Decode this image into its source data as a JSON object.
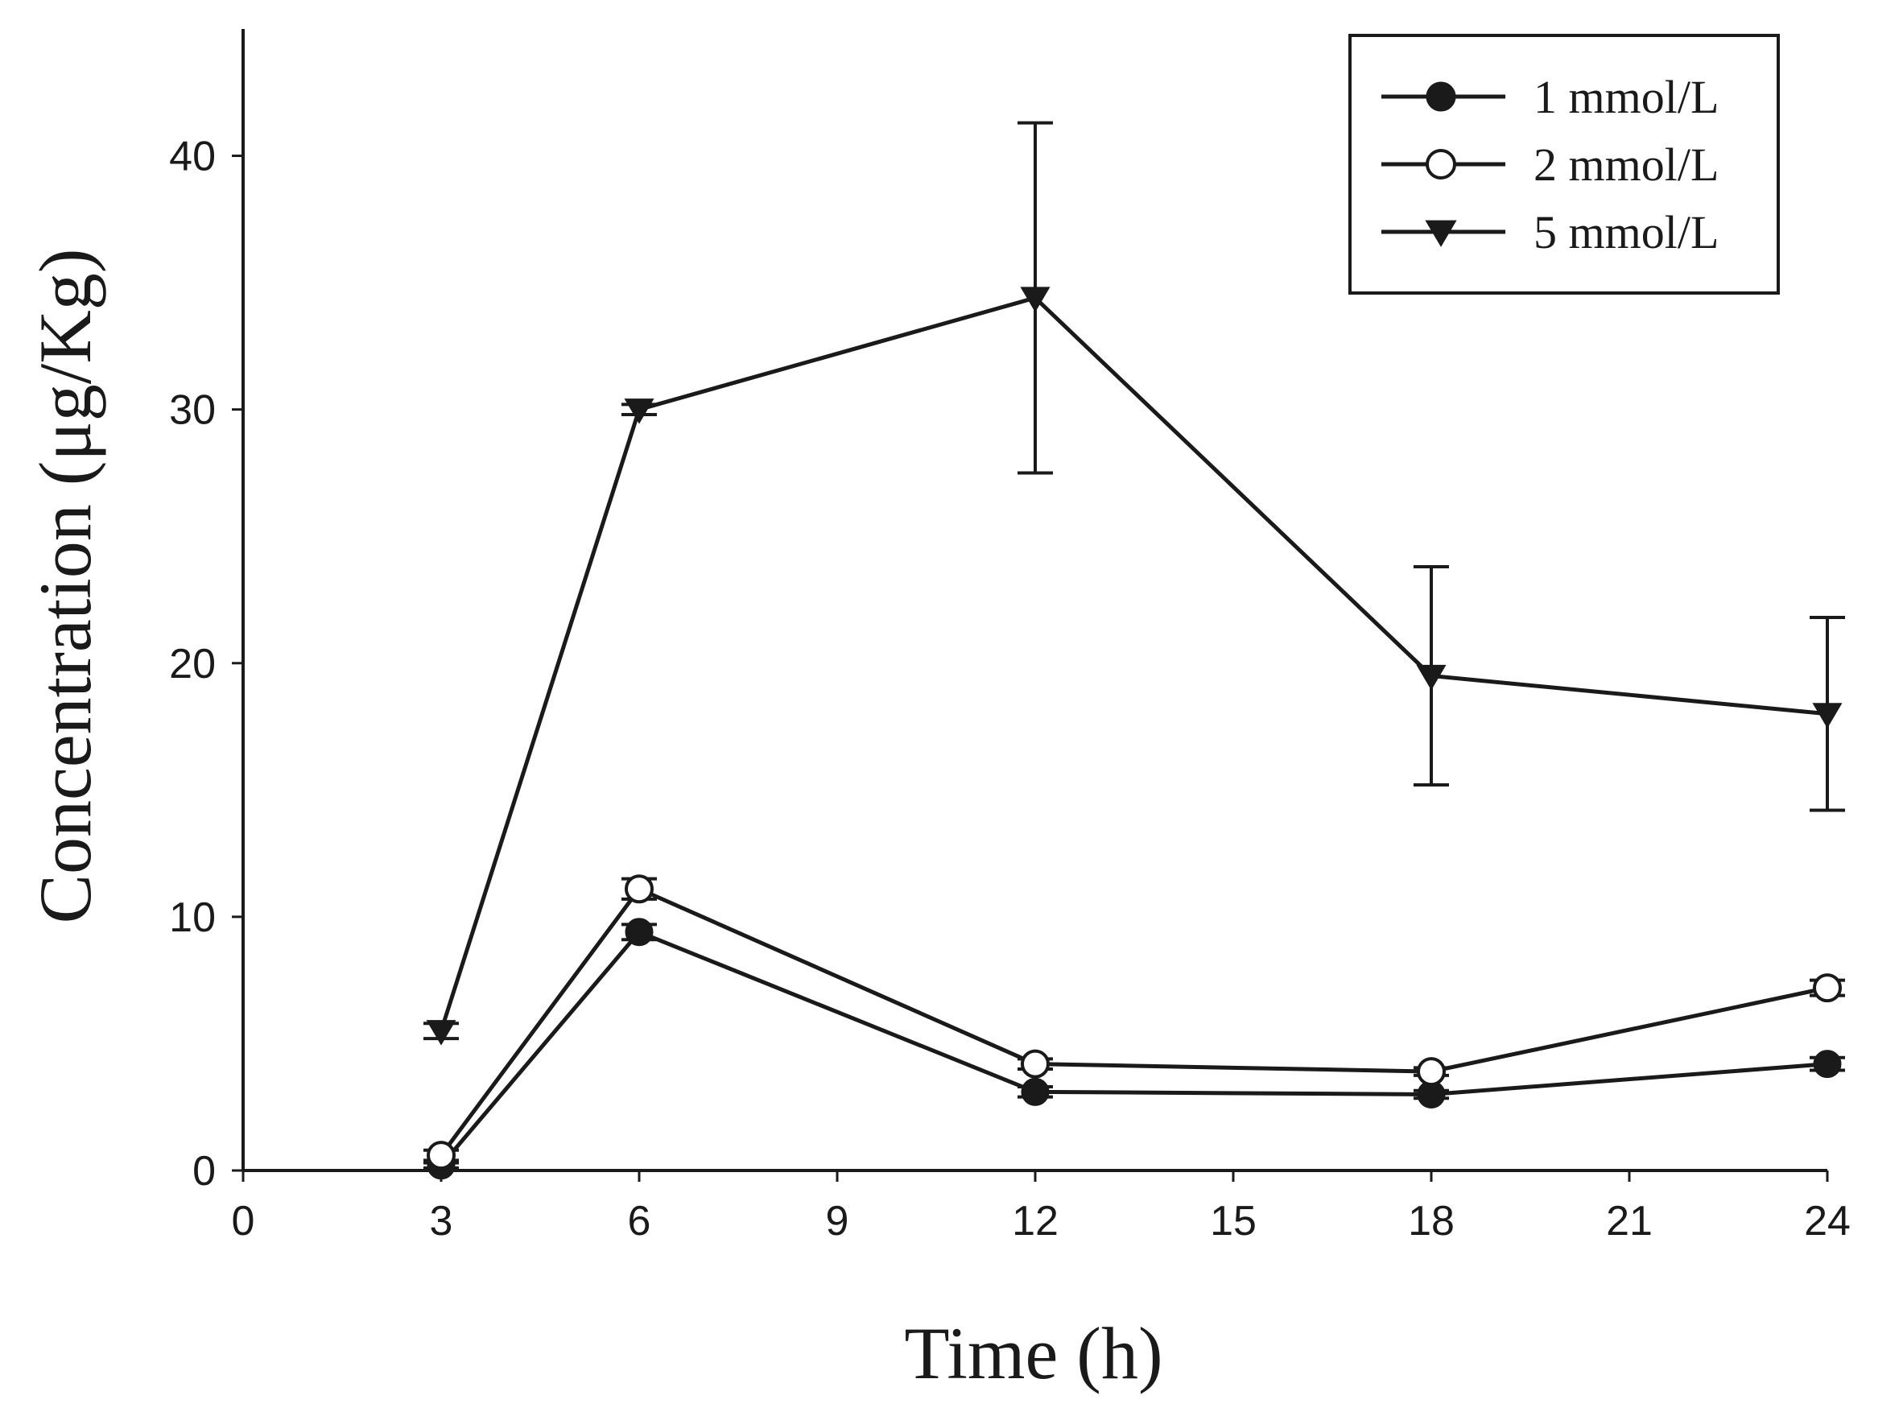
{
  "chart_data": {
    "type": "line",
    "title": "",
    "xlabel": "Time (h)",
    "ylabel": "Concentration (μg/Kg)",
    "xlim": [
      0,
      24
    ],
    "ylim": [
      0,
      45
    ],
    "xticks": [
      0,
      3,
      6,
      9,
      12,
      15,
      18,
      21,
      24
    ],
    "yticks": [
      0,
      10,
      20,
      30,
      40
    ],
    "grid": false,
    "legend_position": "top-right",
    "x": [
      3,
      6,
      12,
      18,
      24
    ],
    "series": [
      {
        "name": "1 mmol/L",
        "marker": "filled-circle",
        "values": [
          0.2,
          9.4,
          3.1,
          3.0,
          4.2
        ],
        "errors": [
          0.1,
          0.3,
          0.2,
          0.15,
          0.25
        ]
      },
      {
        "name": "2 mmol/L",
        "marker": "open-circle",
        "values": [
          0.6,
          11.1,
          4.2,
          3.9,
          7.2
        ],
        "errors": [
          0.2,
          0.4,
          0.2,
          0.15,
          0.3
        ]
      },
      {
        "name": "5 mmol/L",
        "marker": "filled-triangle-down",
        "values": [
          5.5,
          30.0,
          34.4,
          19.5,
          18.0
        ],
        "errors": [
          0.3,
          0.2,
          6.9,
          4.3,
          3.8
        ]
      }
    ]
  },
  "colors": {
    "ink": "#1a1a1a",
    "background": "#ffffff"
  }
}
